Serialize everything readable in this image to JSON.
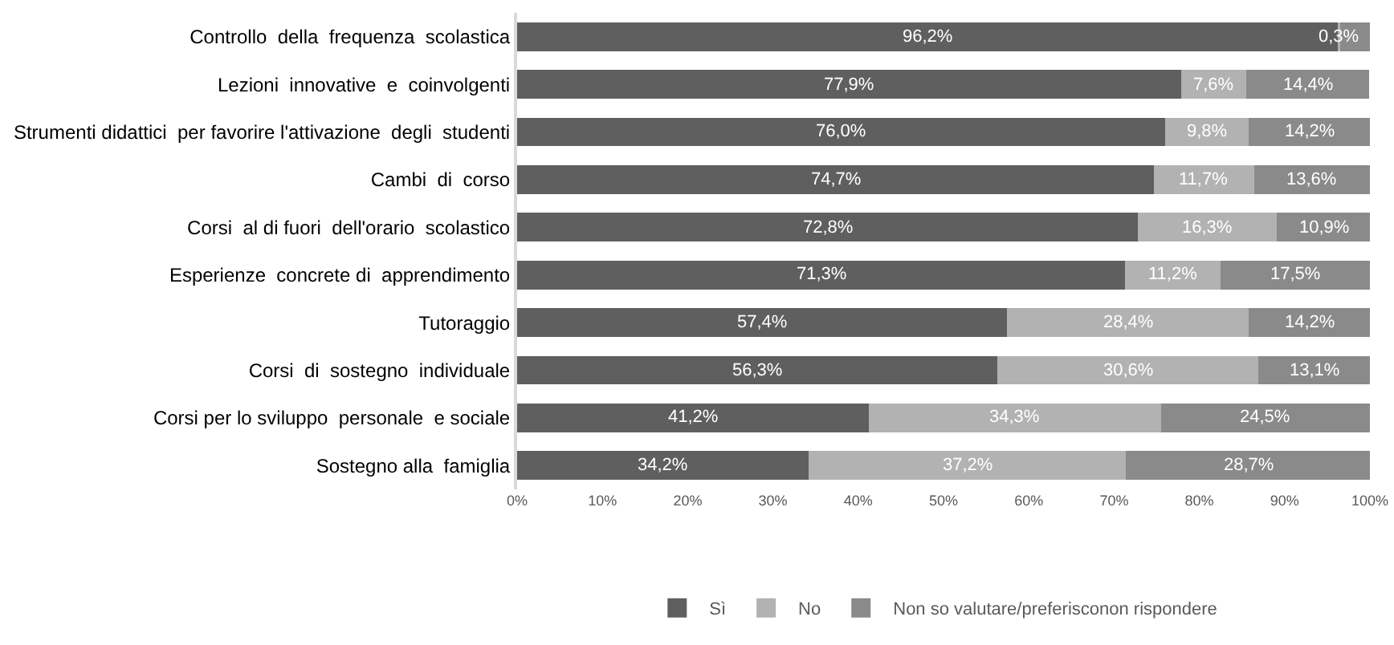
{
  "chart_data": {
    "type": "bar",
    "orientation": "horizontal",
    "stacked": true,
    "categories": [
      "Controllo  della  frequenza  scolastica",
      "Lezioni  innovative  e  coinvolgenti",
      "Strumenti didattici  per favorire l'attivazione  degli  studenti",
      "Cambi  di  corso",
      "Corsi  al di fuori  dell'orario  scolastico",
      "Esperienze  concrete di  apprendimento",
      "Tutoraggio",
      "Corsi  di  sostegno  individuale",
      "Corsi per lo sviluppo  personale  e sociale",
      "Sostegno alla  famiglia"
    ],
    "series": [
      {
        "name": "Sì",
        "color": "#5f5f5f",
        "values": [
          96.2,
          77.9,
          76.0,
          74.7,
          72.8,
          71.3,
          57.4,
          56.3,
          41.2,
          34.2
        ],
        "value_labels": [
          "96,2%",
          "77,9%",
          "76,0%",
          "74,7%",
          "72,8%",
          "71,3%",
          "57,4%",
          "56,3%",
          "41,2%",
          "34,2%"
        ]
      },
      {
        "name": "No",
        "color": "#b2b2b2",
        "values": [
          0.3,
          7.6,
          9.8,
          11.7,
          16.3,
          11.2,
          28.4,
          30.6,
          34.3,
          37.2
        ],
        "value_labels": [
          "0,3%",
          "7,6%",
          "9,8%",
          "11,7%",
          "16,3%",
          "11,2%",
          "28,4%",
          "30,6%",
          "34,3%",
          "37,2%"
        ]
      },
      {
        "name": "Non so valutare/preferisconon rispondere",
        "color": "#8a8a8a",
        "values": [
          3.5,
          14.4,
          14.2,
          13.6,
          10.9,
          17.5,
          14.2,
          13.1,
          24.5,
          28.7
        ],
        "value_labels": [
          null,
          "14,4%",
          "14,2%",
          "13,6%",
          "10,9%",
          "17,5%",
          "14,2%",
          "13,1%",
          "24,5%",
          "28,7%"
        ]
      }
    ],
    "xlim": [
      0,
      100
    ],
    "xticks": [
      {
        "value": 0,
        "label": "0%"
      },
      {
        "value": 10,
        "label": "10%"
      },
      {
        "value": 20,
        "label": "20%"
      },
      {
        "value": 30,
        "label": "30%"
      },
      {
        "value": 40,
        "label": "40%"
      },
      {
        "value": 50,
        "label": "50%"
      },
      {
        "value": 60,
        "label": "60%"
      },
      {
        "value": 70,
        "label": "70%"
      },
      {
        "value": 80,
        "label": "80%"
      },
      {
        "value": 90,
        "label": "90%"
      },
      {
        "value": 100,
        "label": "100%"
      }
    ],
    "grid": false,
    "legend": "bottom"
  }
}
